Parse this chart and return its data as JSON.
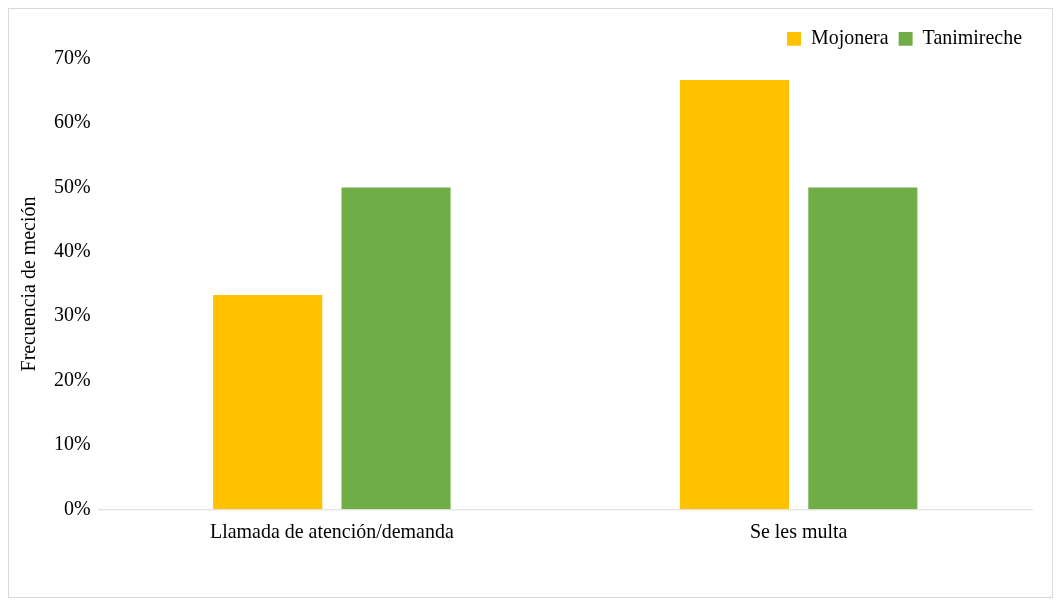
{
  "chart_data": {
    "type": "bar",
    "ylabel": "Frecuencia de meción",
    "categories": [
      "Llamada de atención/demanda",
      "Se les multa"
    ],
    "series": [
      {
        "name": "Mojonera",
        "color": "#ffc000",
        "values": [
          33.3,
          66.7
        ]
      },
      {
        "name": "Tanimireche",
        "color": "#70ad47",
        "values": [
          50,
          50
        ]
      }
    ],
    "ylim": [
      0,
      70
    ],
    "yticks": [
      {
        "value": 0,
        "label": "0%"
      },
      {
        "value": 10,
        "label": "10%"
      },
      {
        "value": 20,
        "label": "20%"
      },
      {
        "value": 30,
        "label": "30%"
      },
      {
        "value": 40,
        "label": "40%"
      },
      {
        "value": 50,
        "label": "50%"
      },
      {
        "value": 60,
        "label": "60%"
      },
      {
        "value": 70,
        "label": "70%"
      }
    ],
    "grid": false,
    "legend": "top right"
  }
}
